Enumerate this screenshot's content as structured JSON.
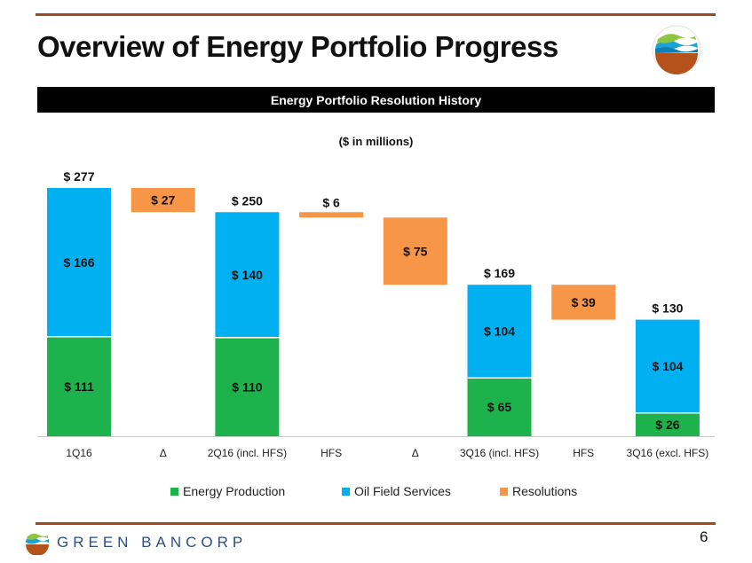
{
  "header": {
    "title": "Overview of Energy Portfolio Progress",
    "banner": "Energy Portfolio Resolution History",
    "subtitle": "($ in millions)"
  },
  "colors": {
    "energy_production": "#1eb24c",
    "oil_field_services": "#00b0f0",
    "resolutions": "#f79646",
    "rule": "#9c4a1e",
    "brand_text": "#2b4e86"
  },
  "chart_data": {
    "type": "bar",
    "subtype": "waterfall",
    "title": "Energy Portfolio Resolution History",
    "ylabel": "$ in millions",
    "ylim": [
      0,
      277
    ],
    "categories": [
      "1Q16",
      "Δ",
      "2Q16 (incl. HFS)",
      "HFS",
      "Δ",
      "3Q16 (incl. HFS)",
      "HFS",
      "3Q16 (excl. HFS)"
    ],
    "series": [
      {
        "name": "Energy Production",
        "values": [
          111,
          null,
          110,
          null,
          null,
          65,
          null,
          26
        ]
      },
      {
        "name": "Oil Field Services",
        "values": [
          166,
          null,
          140,
          null,
          null,
          104,
          null,
          104
        ]
      },
      {
        "name": "Resolutions",
        "values": [
          null,
          27,
          null,
          6,
          75,
          null,
          39,
          null
        ]
      }
    ],
    "totals": [
      277,
      null,
      250,
      null,
      null,
      169,
      null,
      130
    ],
    "waterfall_ranges": [
      null,
      [
        250,
        277
      ],
      null,
      [
        244,
        250
      ],
      [
        169,
        244
      ],
      null,
      [
        130,
        169
      ],
      null
    ],
    "segment_labels": {
      "energy_production": [
        "$ 111",
        null,
        "$ 110",
        null,
        null,
        "$ 65",
        null,
        "$ 26"
      ],
      "oil_field_services": [
        "$ 166",
        null,
        "$ 140",
        null,
        null,
        "$ 104",
        null,
        "$ 104"
      ],
      "resolutions": [
        null,
        "$ 27",
        null,
        "$ 6",
        "$ 75",
        null,
        "$ 39",
        null
      ]
    },
    "total_labels": [
      "$ 277",
      null,
      "$ 250",
      null,
      null,
      "$ 169",
      null,
      "$ 130"
    ],
    "legend": [
      "Energy Production",
      "Oil Field Services",
      "Resolutions"
    ],
    "legend_position": "bottom"
  },
  "footer": {
    "page_number": "6",
    "brand": "GREEN BANCORP"
  }
}
